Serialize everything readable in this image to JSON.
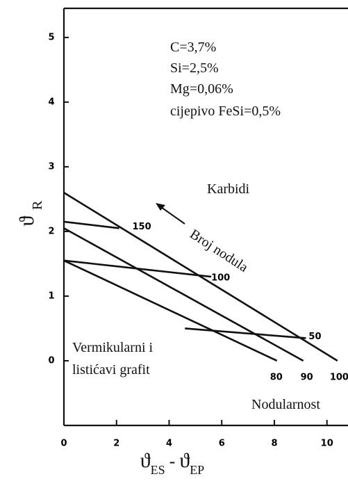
{
  "chart_data": {
    "type": "line",
    "xlabel": [
      "ϑ",
      "ES",
      "-",
      "ϑ",
      "EP"
    ],
    "ylabel": [
      "ϑ",
      "R"
    ],
    "xlim": [
      0,
      10.8
    ],
    "ylim": [
      -1,
      5.45
    ],
    "xticks": [
      0,
      2,
      4,
      6,
      8,
      10
    ],
    "yticks": [
      0,
      1,
      2,
      3,
      4,
      5
    ],
    "series": [
      {
        "name": "100",
        "color": "#111111",
        "x": [
          0,
          10.4
        ],
        "values": [
          2.6,
          0
        ]
      },
      {
        "name": "90",
        "color": "#111111",
        "x": [
          0,
          9.1
        ],
        "values": [
          2.05,
          0
        ]
      },
      {
        "name": "80",
        "color": "#111111",
        "x": [
          0,
          8.1
        ],
        "values": [
          1.55,
          0
        ]
      },
      {
        "name": "150",
        "color": "#111111",
        "x": [
          0,
          2.1
        ],
        "values": [
          2.15,
          2.05
        ]
      },
      {
        "name": "100",
        "color": "#111111",
        "x": [
          0,
          5.6
        ],
        "values": [
          1.55,
          1.3
        ]
      },
      {
        "name": "50",
        "color": "#111111",
        "x": [
          4.6,
          9.2
        ],
        "values": [
          0.5,
          0.35
        ]
      }
    ],
    "annotations": [
      "C=3,7%",
      "Si=2,5%",
      "Mg=0,06%",
      "cijepivo FeSi=0,5%",
      "Karbidi",
      "Broj nodula",
      "Vermikularni i",
      "listićavi grafit",
      "Nodularnost"
    ]
  }
}
